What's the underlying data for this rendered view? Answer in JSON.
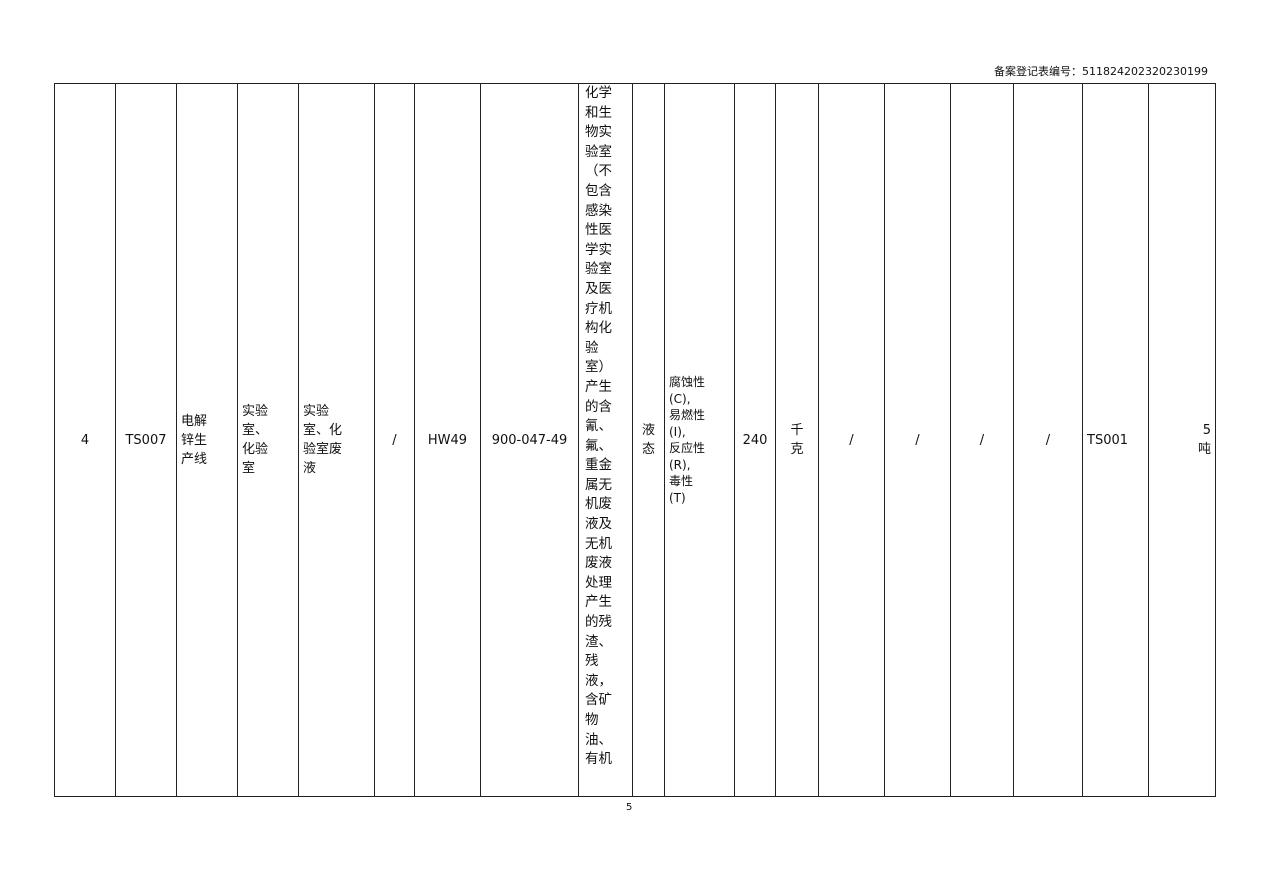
{
  "header": {
    "registration_no": "备案登记表编号：511824202320230199"
  },
  "row": {
    "no": "4",
    "code": "TS007",
    "line": "电解\n锌生\n产线",
    "source": "实验\n室、\n化验\n室",
    "waste_name": "实验\n室、化\n验室废\n液",
    "c6": "/",
    "category": "HW49",
    "waste_code": "900-047-49",
    "description": "化学\n和生\n物实\n验室\n（不\n包含\n感染\n性医\n学实\n验室\n及医\n疗机\n构化\n验\n室）\n产生\n的含\n氰、\n氟、\n重金\n属无\n机废\n液及\n无机\n废液\n处理\n产生\n的残\n渣、\n残\n液，\n含矿\n物\n油、\n有机",
    "form": "液\n态",
    "hazard": "腐蚀性\n(C),\n易燃性\n(I),\n反应性\n(R),\n毒性\n(T)",
    "amount": "240",
    "unit": "千\n克",
    "c14": "/",
    "c15": "/",
    "c16": "/",
    "c17": "/",
    "facility": "TS001",
    "capacity": "5\n吨"
  },
  "footer": {
    "page_number": "5"
  }
}
